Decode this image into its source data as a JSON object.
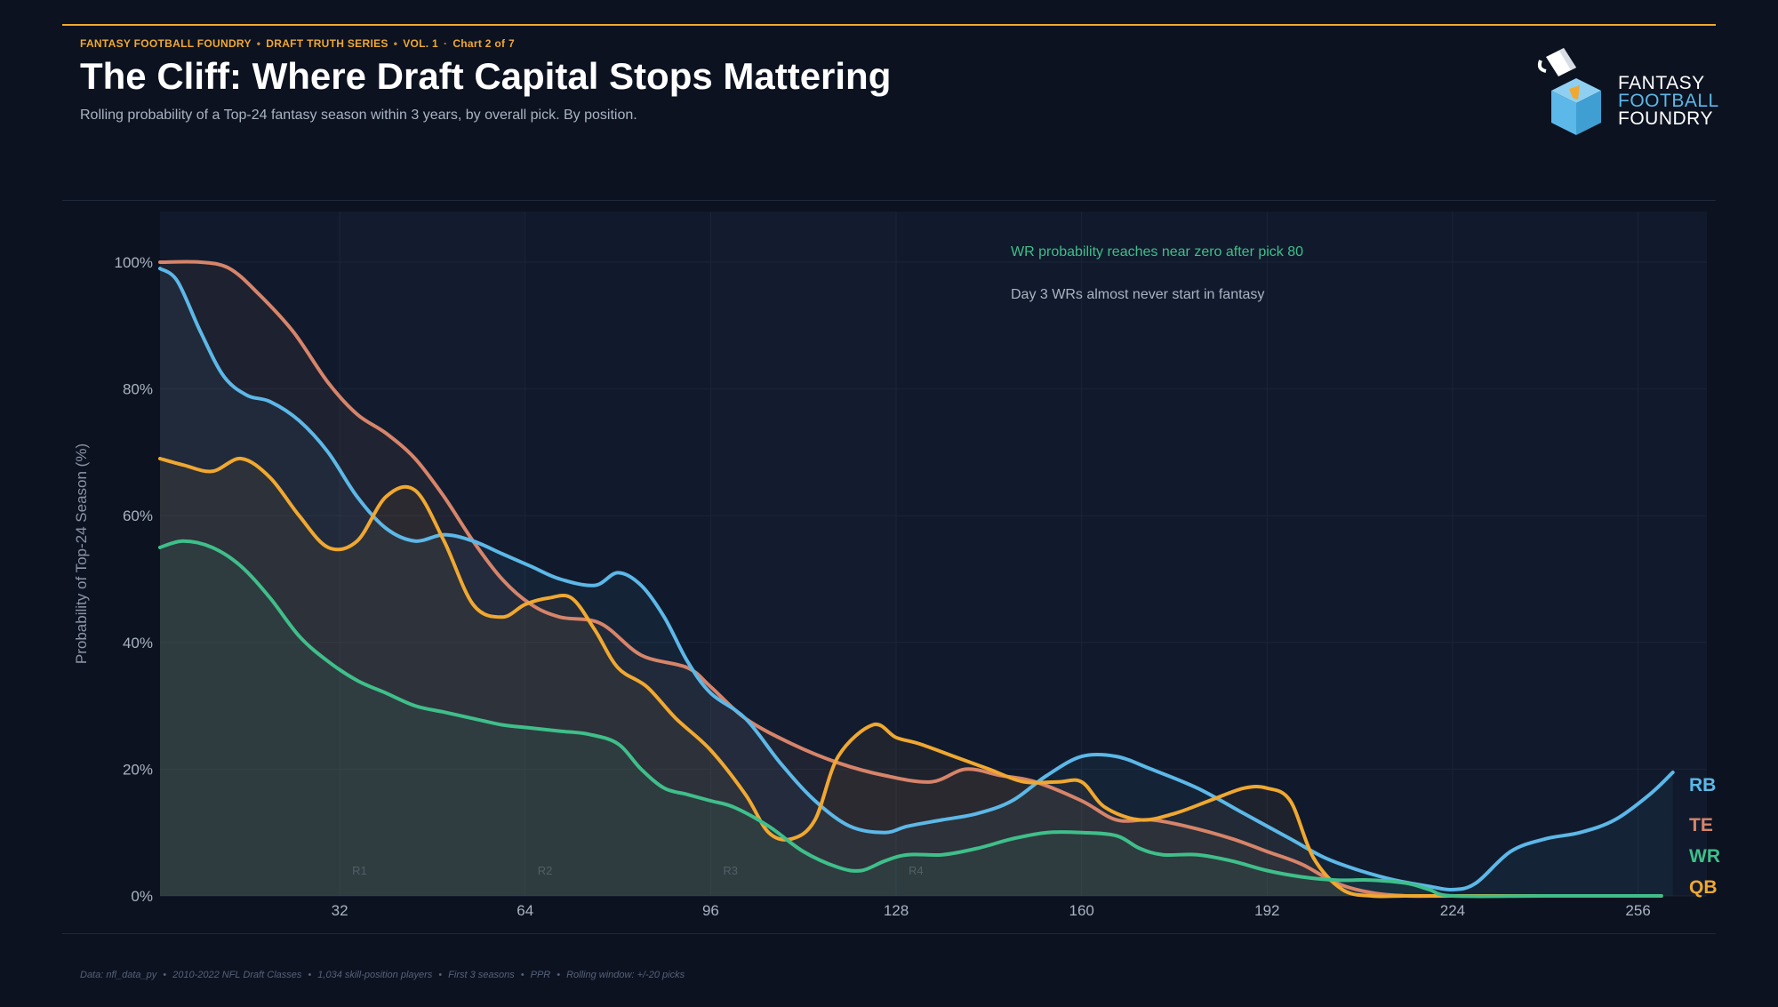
{
  "header": {
    "kicker": [
      "FANTASY FOOTBALL FOUNDRY",
      "DRAFT TRUTH SERIES",
      "VOL. 1",
      "Chart 2 of 7"
    ],
    "title": "The Cliff: Where Draft Capital Stops Mattering",
    "subtitle": "Rolling probability of a Top-24 fantasy season within 3 years, by overall pick. By position."
  },
  "logo": {
    "line1": "FANTASY",
    "line2": "FOOTBALL",
    "line3": "FOUNDRY",
    "colors": {
      "white": "#ffffff",
      "blue": "#5cb8e8",
      "orange": "#f0a830"
    }
  },
  "footer": [
    "Data: nfl_data_py",
    "2010-2022 NFL Draft Classes",
    "1,034 skill-position players",
    "First 3 seasons",
    "PPR",
    "Rolling window: +/-20 picks"
  ],
  "chart_data": {
    "type": "line",
    "title": "The Cliff: Where Draft Capital Stops Mattering",
    "xlabel": "",
    "ylabel": "Probability of Top-24 Season (%)",
    "xlim": [
      1,
      266
    ],
    "ylim": [
      0,
      108
    ],
    "xticks": [
      32,
      64,
      96,
      128,
      160,
      192,
      224,
      256
    ],
    "yticks": [
      0,
      20,
      40,
      60,
      80,
      100
    ],
    "ytick_labels": [
      "0%",
      "20%",
      "40%",
      "60%",
      "80%",
      "100%"
    ],
    "round_markers": [
      {
        "label": "R1",
        "x": 32
      },
      {
        "label": "R2",
        "x": 64
      },
      {
        "label": "R3",
        "x": 96
      },
      {
        "label": "R4",
        "x": 128
      }
    ],
    "annotations": [
      {
        "text": "WR probability reaches near zero after pick 80",
        "color": "#3fbf8a"
      },
      {
        "text": "Day 3 WRs almost never start in fantasy",
        "color": "#aab3c2"
      }
    ],
    "series": [
      {
        "name": "TE",
        "color": "#d7846a",
        "fill": "rgba(215,132,106,0.07)",
        "x": [
          1,
          8,
          13,
          18,
          24,
          30,
          35,
          40,
          45,
          50,
          55,
          60,
          65,
          70,
          77,
          84,
          92,
          96,
          102,
          110,
          118,
          126,
          134,
          140,
          146,
          152,
          160,
          166,
          172,
          178,
          186,
          192,
          198,
          204,
          210,
          216,
          224,
          240,
          260
        ],
        "y": [
          100,
          100,
          99,
          95,
          89,
          81,
          76,
          73,
          69,
          63,
          56,
          50,
          46,
          44,
          43,
          38,
          36,
          33,
          28,
          24,
          21,
          19,
          18,
          20,
          19,
          18,
          15,
          12,
          12,
          11,
          9,
          7,
          5,
          2,
          0.5,
          0,
          0,
          0,
          0
        ]
      },
      {
        "name": "RB",
        "color": "#5cb8e8",
        "fill": "rgba(92,184,232,0.06)",
        "x": [
          1,
          4,
          8,
          12,
          16,
          20,
          25,
          30,
          35,
          40,
          45,
          50,
          55,
          60,
          65,
          70,
          76,
          80,
          84,
          88,
          92,
          96,
          102,
          108,
          114,
          120,
          126,
          130,
          136,
          142,
          148,
          154,
          160,
          166,
          172,
          180,
          188,
          196,
          202,
          208,
          214,
          220,
          224,
          228,
          234,
          240,
          246,
          252,
          258,
          262
        ],
        "y": [
          99,
          97,
          89,
          82,
          79,
          78,
          75,
          70,
          63,
          58,
          56,
          57,
          56,
          54,
          52,
          50,
          49,
          51,
          49,
          44,
          37,
          32,
          28,
          21,
          15,
          11,
          10,
          11,
          12,
          13,
          15,
          19,
          22,
          22,
          20,
          17,
          13,
          9,
          6,
          4,
          2.5,
          1.5,
          1,
          2,
          7,
          9,
          10,
          12,
          16,
          19.5
        ]
      },
      {
        "name": "QB",
        "color": "#f0a830",
        "fill": "rgba(240,168,50,0.06)",
        "x": [
          1,
          5,
          10,
          15,
          20,
          25,
          30,
          35,
          40,
          45,
          50,
          55,
          60,
          64,
          68,
          72,
          76,
          80,
          85,
          90,
          96,
          102,
          106,
          110,
          114,
          118,
          124,
          128,
          132,
          138,
          144,
          150,
          156,
          160,
          164,
          170,
          176,
          182,
          188,
          192,
          196,
          200,
          205,
          210,
          216,
          224,
          240,
          260
        ],
        "y": [
          69,
          68,
          67,
          69,
          66,
          60,
          55,
          56,
          63,
          64,
          56,
          46,
          44,
          46,
          47,
          47,
          42,
          36,
          33,
          28,
          23,
          16,
          10,
          9,
          12,
          22,
          27,
          25,
          24,
          22,
          20,
          18,
          18,
          18,
          14,
          12,
          13,
          15,
          17,
          17,
          15,
          6,
          1,
          0,
          0,
          0,
          0,
          0
        ]
      },
      {
        "name": "WR",
        "color": "#3fbf8a",
        "fill": "rgba(63,191,138,0.08)",
        "x": [
          1,
          5,
          10,
          15,
          20,
          25,
          30,
          35,
          40,
          45,
          50,
          55,
          60,
          65,
          70,
          75,
          80,
          84,
          88,
          92,
          96,
          100,
          106,
          112,
          118,
          122,
          126,
          130,
          136,
          142,
          148,
          154,
          160,
          166,
          170,
          174,
          180,
          186,
          192,
          198,
          204,
          210,
          216,
          220,
          224,
          240,
          260
        ],
        "y": [
          55,
          56,
          55,
          52,
          47,
          41,
          37,
          34,
          32,
          30,
          29,
          28,
          27,
          26.5,
          26,
          25.5,
          24,
          20,
          17,
          16,
          15,
          14,
          11,
          7,
          4.5,
          4,
          5.5,
          6.5,
          6.5,
          7.5,
          9,
          10,
          10,
          9.5,
          7.5,
          6.5,
          6.5,
          5.5,
          4,
          3,
          2.5,
          2.5,
          2,
          1,
          0,
          0,
          0
        ]
      }
    ],
    "end_labels": [
      {
        "name": "RB",
        "color": "#5cb8e8"
      },
      {
        "name": "TE",
        "color": "#d7846a"
      },
      {
        "name": "WR",
        "color": "#3fbf8a"
      },
      {
        "name": "QB",
        "color": "#f0a830"
      }
    ]
  }
}
